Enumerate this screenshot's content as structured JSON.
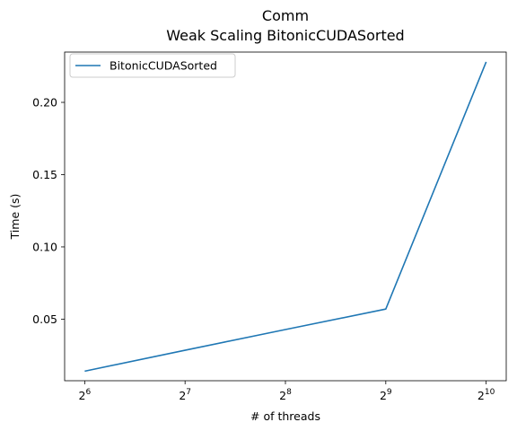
{
  "chart_data": {
    "type": "line",
    "title": "Comm",
    "subtitle": "Weak Scaling BitonicCUDASorted",
    "xlabel": "# of threads",
    "ylabel": "Time (s)",
    "xscale": "log2",
    "x": [
      64,
      128,
      256,
      512,
      1024
    ],
    "x_tick_labels": [
      {
        "base": "2",
        "exp": "6"
      },
      {
        "base": "2",
        "exp": "7"
      },
      {
        "base": "2",
        "exp": "8"
      },
      {
        "base": "2",
        "exp": "9"
      },
      {
        "base": "2",
        "exp": "10"
      }
    ],
    "y_ticks": [
      0.05,
      0.1,
      0.15,
      0.2
    ],
    "y_tick_labels": [
      "0.05",
      "0.10",
      "0.15",
      "0.20"
    ],
    "ylim": [
      0.0074,
      0.2348
    ],
    "series": [
      {
        "name": "BitonicCUDASorted",
        "color": "#1f77b4",
        "values": [
          0.014,
          0.0285,
          0.0428,
          0.057,
          0.228
        ]
      }
    ],
    "legend": "top-left",
    "grid": false
  }
}
